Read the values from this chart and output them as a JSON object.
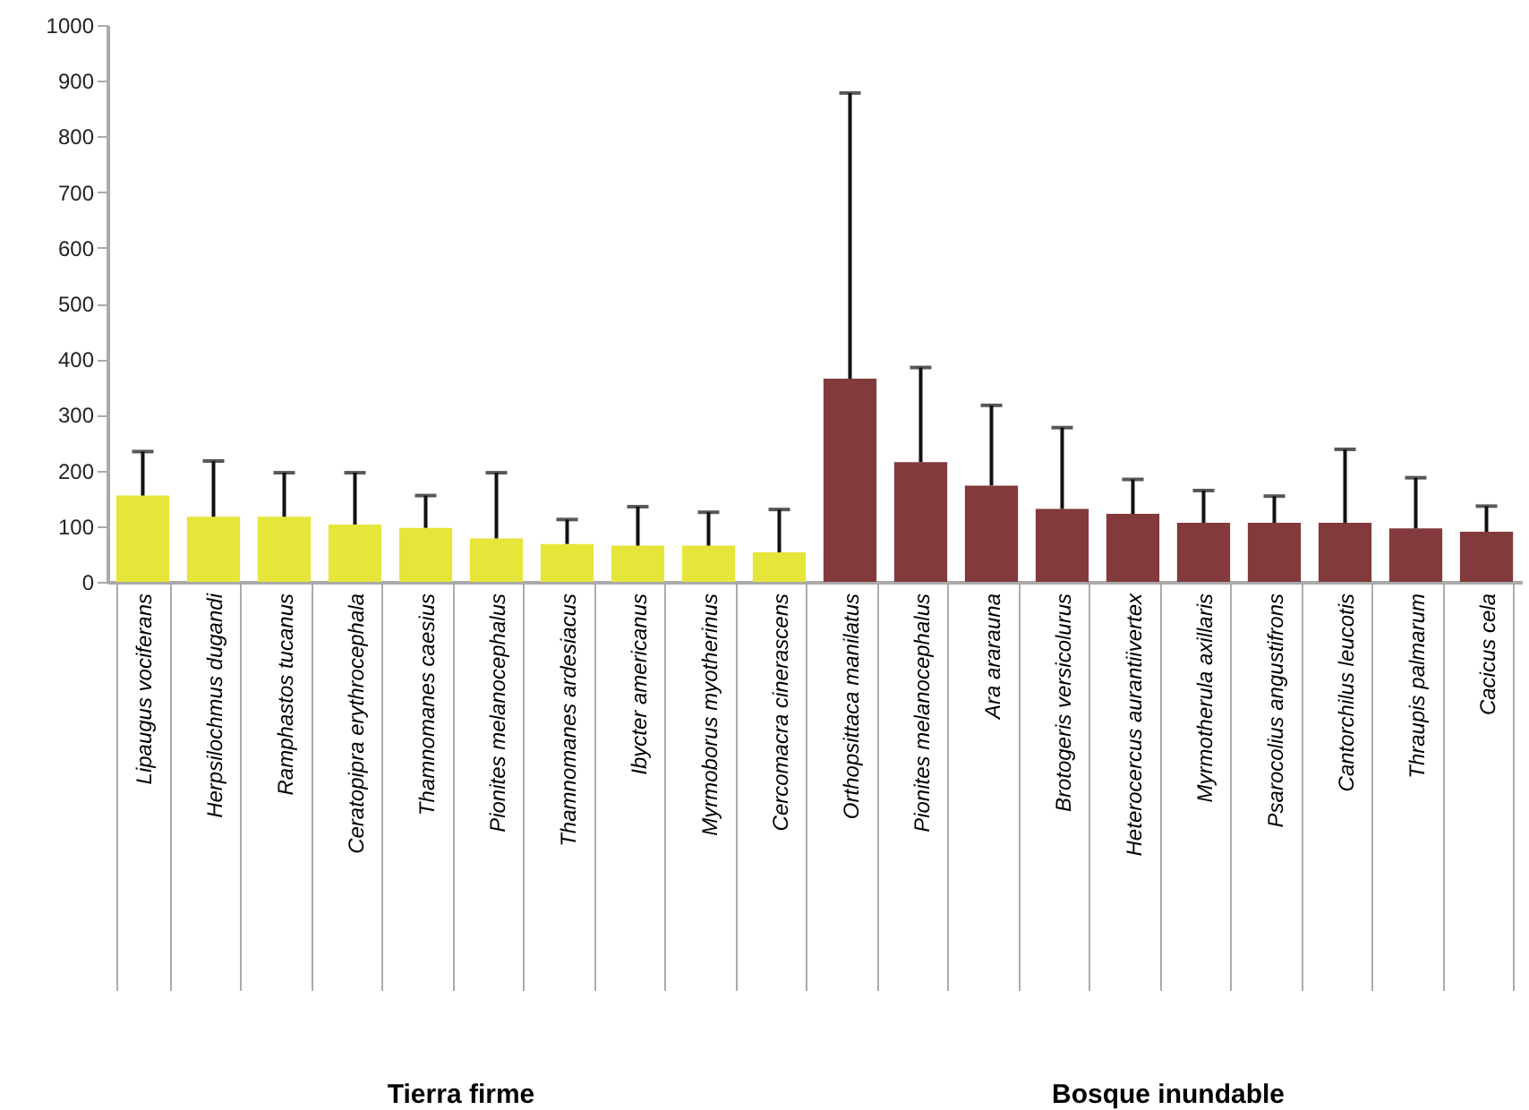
{
  "chart_data": {
    "type": "bar",
    "categories": [
      "Lipaugus vociferans",
      "Herpsilochmus dugandi",
      "Ramphastos tucanus",
      "Ceratopipra erythrocephala",
      "Thamnomanes caesius",
      "Pionites melanocephalus",
      "Thamnomanes ardesiacus",
      "Ibycter americanus",
      "Myrmoborus myotherinus",
      "Cercomacra cinerascens",
      "Orthopsittaca manilatus",
      "Pionites melanocephalus",
      "Ara ararauna",
      "Brotogeris versicolurus",
      "Heterocercus aurantiivertex",
      "Myrmotherula axillaris",
      "Psarocolius angustifrons",
      "Cantorchilus leucotis",
      "Thraupis palmarum",
      "Cacicus cela"
    ],
    "values": [
      155,
      117,
      117,
      103,
      97,
      78,
      68,
      65,
      65,
      53,
      365,
      215,
      173,
      131,
      122,
      106,
      106,
      106,
      96,
      90
    ],
    "colors": [
      "#e6e53a",
      "#e6e53a",
      "#e6e53a",
      "#e6e53a",
      "#e6e53a",
      "#e6e53a",
      "#e6e53a",
      "#e6e53a",
      "#e6e53a",
      "#e6e53a",
      "#833a3c",
      "#833a3c",
      "#833a3c",
      "#833a3c",
      "#833a3c",
      "#833a3c",
      "#833a3c",
      "#833a3c",
      "#833a3c",
      "#833a3c"
    ],
    "errors": [
      [
        155,
        234
      ],
      [
        117,
        217
      ],
      [
        117,
        196
      ],
      [
        103,
        196
      ],
      [
        97,
        155
      ],
      [
        78,
        196
      ],
      [
        68,
        112
      ],
      [
        65,
        135
      ],
      [
        65,
        125
      ],
      [
        53,
        130
      ],
      [
        365,
        878
      ],
      [
        215,
        385
      ],
      [
        173,
        317
      ],
      [
        131,
        277
      ],
      [
        122,
        184
      ],
      [
        106,
        164
      ],
      [
        106,
        154
      ],
      [
        106,
        238
      ],
      [
        96,
        187
      ],
      [
        90,
        136
      ]
    ],
    "ylim": [
      0,
      1000
    ],
    "yticks": [
      0,
      100,
      200,
      300,
      400,
      500,
      600,
      700,
      800,
      900,
      1000
    ],
    "grid": false,
    "annotations": [
      "Tierra firme",
      "Bosque inundable"
    ]
  }
}
